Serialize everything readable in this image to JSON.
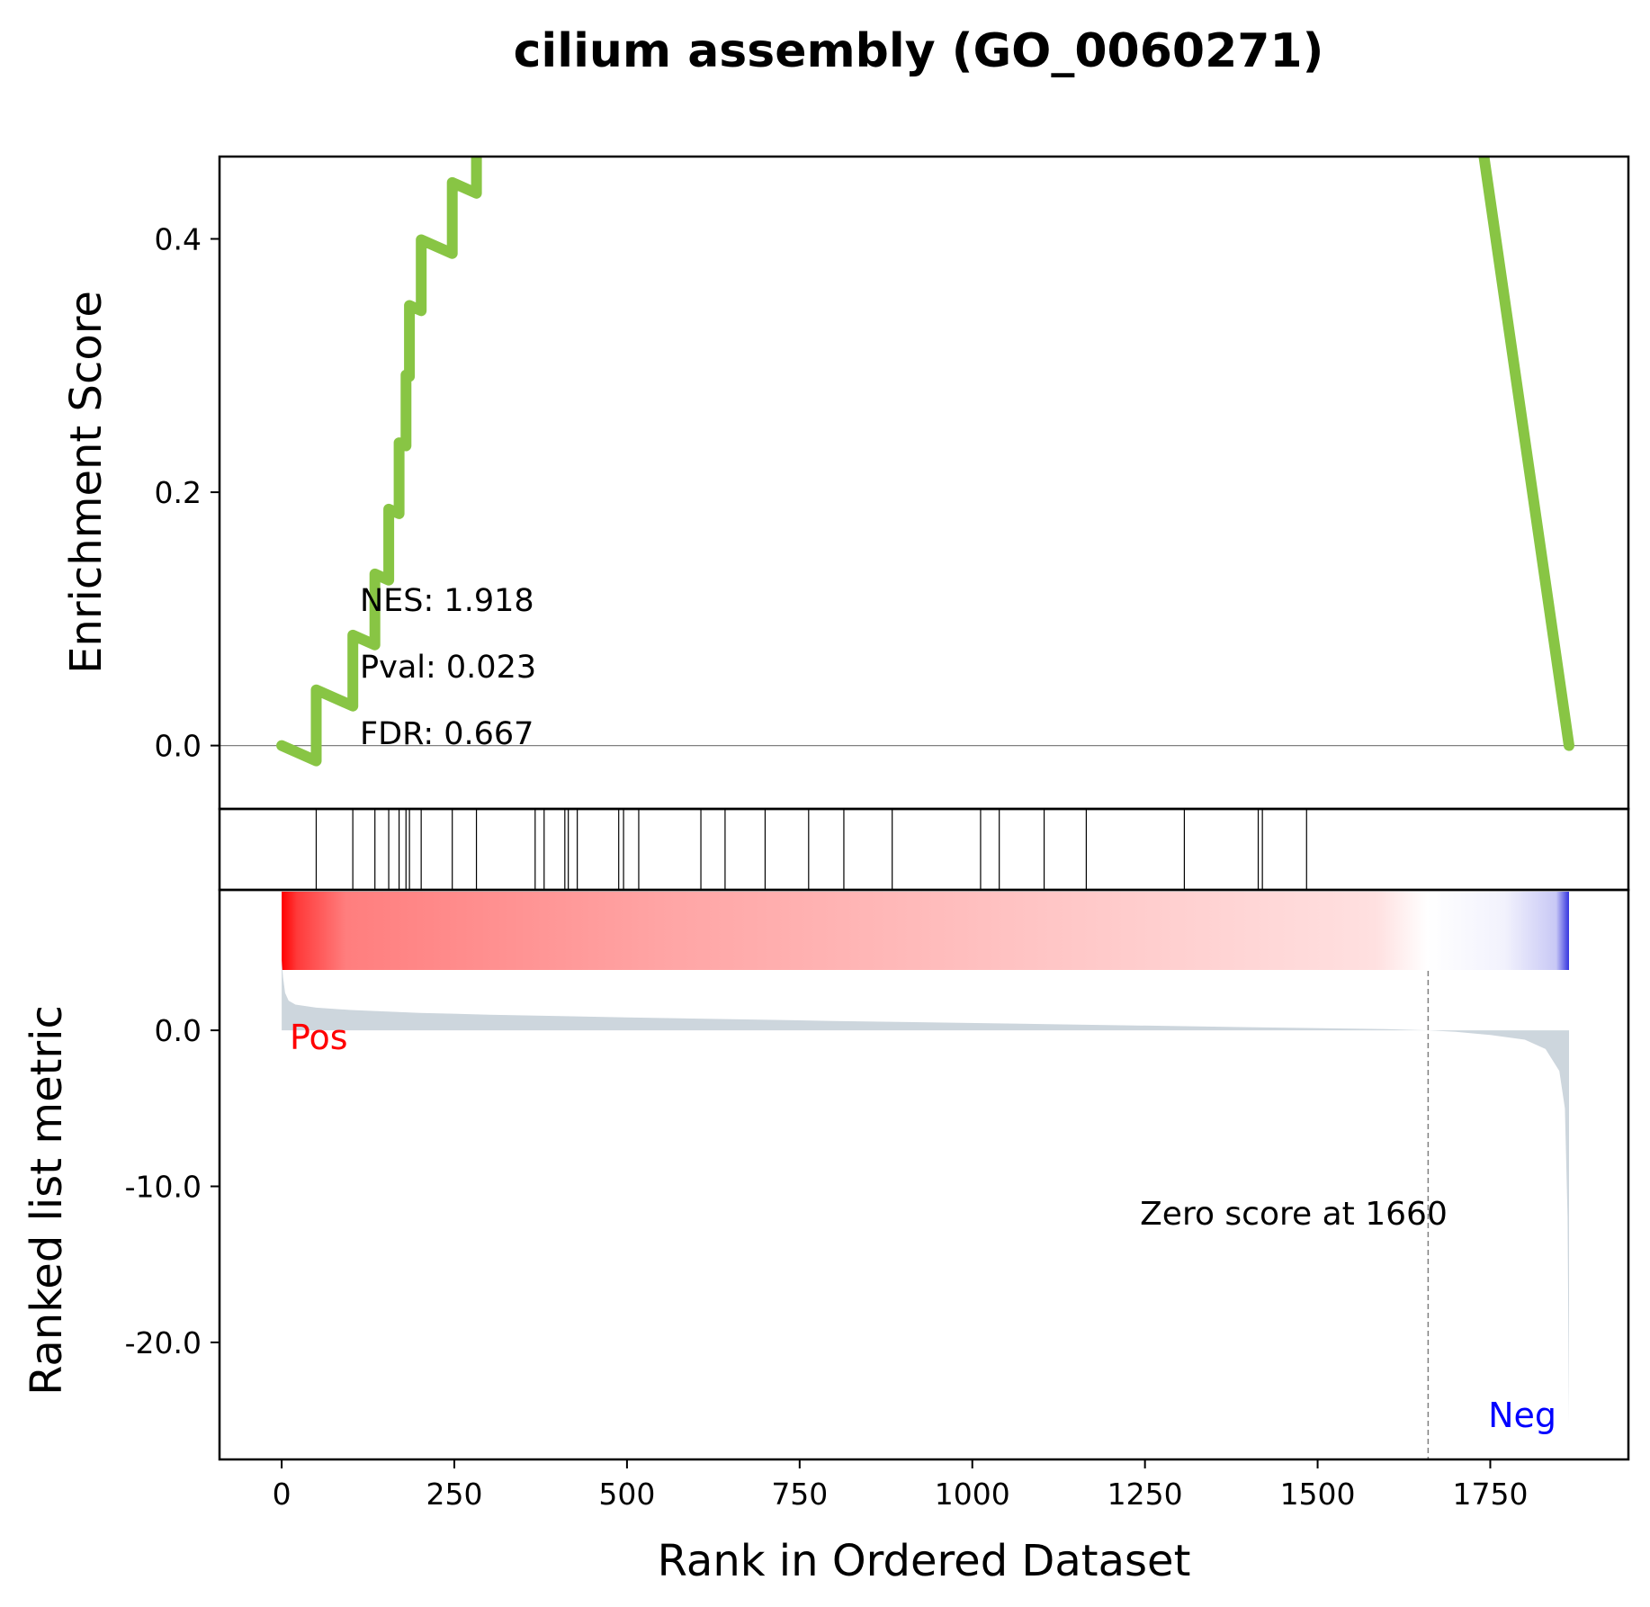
{
  "colors": {
    "es_line": "#88c544",
    "hit_line": "#000000",
    "metric_fill": "#cdd6dd",
    "pos_label": "#ff0000",
    "neg_label": "#0000ff",
    "zero_line": "#808080"
  },
  "chart_data": {
    "type": "line",
    "title": "cilium assembly (GO_0060271)",
    "xlabel": "Rank in Ordered Dataset",
    "xlim": [
      -90,
      1950
    ],
    "x_ticks": [
      0,
      250,
      500,
      750,
      1000,
      1250,
      1500,
      1750
    ],
    "x_tick_labels": [
      "0",
      "250",
      "500",
      "750",
      "1000",
      "1250",
      "1500",
      "1750"
    ],
    "n_genes": 1865,
    "enrichment": {
      "ylabel": "Enrichment Score",
      "ylim": [
        -0.05,
        0.465
      ],
      "y_ticks": [
        0.0,
        0.2,
        0.4
      ],
      "y_tick_labels": [
        "0.0",
        "0.2",
        "0.4"
      ],
      "hits": [
        50,
        103,
        135,
        155,
        170,
        180,
        185,
        202,
        247,
        282,
        367,
        380,
        410,
        415,
        428,
        488,
        495,
        517,
        607,
        642,
        700,
        763,
        814,
        884,
        1012,
        1039,
        1104,
        1165,
        1307,
        1414,
        1420,
        1484
      ],
      "increment": 0.056,
      "decrement": 0.000241,
      "stats": {
        "nes": "NES: 1.918",
        "pval": "Pval: 0.023",
        "fdr": "FDR: 0.667"
      }
    },
    "ranked_metric": {
      "ylabel": "Ranked list metric",
      "ylim": [
        -27.5,
        9
      ],
      "y_ticks": [
        0.0,
        -10.0,
        -20.0
      ],
      "y_tick_labels": [
        "0.0",
        "-10.0",
        "-20.0"
      ],
      "profile": [
        [
          0,
          4.5
        ],
        [
          2,
          3.4
        ],
        [
          5,
          2.4
        ],
        [
          10,
          1.9
        ],
        [
          20,
          1.65
        ],
        [
          50,
          1.45
        ],
        [
          100,
          1.3
        ],
        [
          200,
          1.12
        ],
        [
          300,
          1.0
        ],
        [
          500,
          0.83
        ],
        [
          800,
          0.6
        ],
        [
          1100,
          0.4
        ],
        [
          1400,
          0.2
        ],
        [
          1600,
          0.08
        ],
        [
          1660,
          0.0
        ],
        [
          1700,
          -0.1
        ],
        [
          1750,
          -0.3
        ],
        [
          1800,
          -0.6
        ],
        [
          1830,
          -1.2
        ],
        [
          1850,
          -2.6
        ],
        [
          1858,
          -5.0
        ],
        [
          1862,
          -12.0
        ],
        [
          1864,
          -25.3
        ]
      ],
      "zero_cross": 1660,
      "zero_label": "Zero score at 1660",
      "pos_label": "Pos",
      "neg_label": "Neg"
    }
  }
}
